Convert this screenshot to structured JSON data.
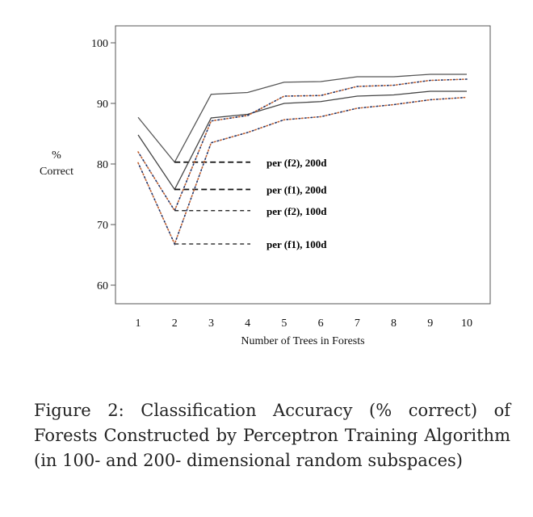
{
  "chart_data": {
    "type": "line",
    "xlabel": "Number of Trees in Forests",
    "ylabel": "%\nCorrect",
    "ylabel_lines": [
      "%",
      "Correct"
    ],
    "x": [
      1,
      2,
      3,
      4,
      5,
      6,
      7,
      8,
      9,
      10
    ],
    "xticks": [
      "1",
      "2",
      "3",
      "4",
      "5",
      "6",
      "7",
      "8",
      "9",
      "10"
    ],
    "yticks": [
      "60",
      "70",
      "80",
      "90",
      "100"
    ],
    "ylim": [
      56,
      103
    ],
    "xlim": [
      0.4,
      10.6
    ],
    "grid": false,
    "series": [
      {
        "name": "per (f2), 200d",
        "style": "solid",
        "color": "#555555",
        "values": [
          87.7,
          80.3,
          91.5,
          91.8,
          93.5,
          93.6,
          94.4,
          94.4,
          94.8,
          94.8
        ]
      },
      {
        "name": "per (f1), 200d",
        "style": "solid",
        "color": "#444444",
        "values": [
          84.8,
          75.8,
          87.6,
          88.2,
          90.0,
          90.3,
          91.2,
          91.4,
          92.0,
          92.0
        ]
      },
      {
        "name": "per (f2), 100d",
        "style": "dotted",
        "color": "#333366",
        "values": [
          82.0,
          72.3,
          87.1,
          88.0,
          91.2,
          91.3,
          92.8,
          93.0,
          93.8,
          94.0
        ]
      },
      {
        "name": "per (f1), 100d",
        "style": "dotted",
        "color": "#333366",
        "values": [
          80.2,
          66.8,
          83.5,
          85.2,
          87.3,
          87.8,
          89.2,
          89.8,
          90.6,
          91.0
        ]
      }
    ]
  },
  "caption": "Figure 2: Classification Accuracy (% correct) of Forests Constructed by Perceptron Training Algorithm (in 100- and 200- dimensional random subspaces)"
}
